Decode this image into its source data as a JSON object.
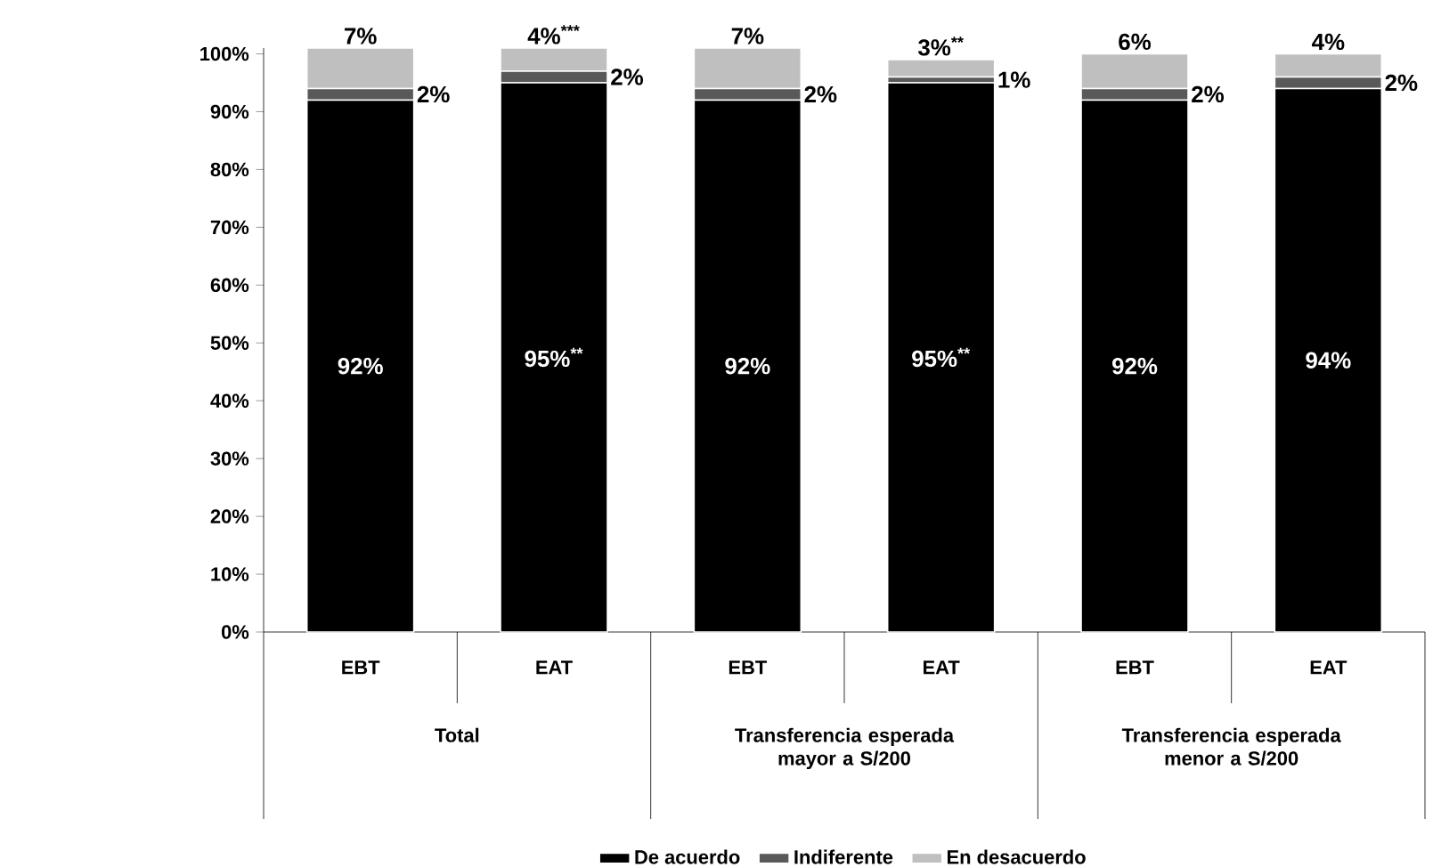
{
  "chart_data": {
    "type": "bar",
    "stacked": true,
    "categories": [
      "EBT",
      "EAT",
      "EBT",
      "EAT",
      "EBT",
      "EAT"
    ],
    "series": [
      {
        "name": "De acuerdo",
        "color": "#000000",
        "values": [
          92,
          95,
          92,
          95,
          92,
          94
        ],
        "value_labels": [
          "92%",
          "95%$^{**}$",
          "92%",
          "95%$^{**}$",
          "92%",
          "94%"
        ]
      },
      {
        "name": "Indiferente",
        "color": "#595959",
        "values": [
          2,
          2,
          2,
          1,
          2,
          2
        ],
        "value_labels": [
          "2%",
          "2%",
          "2%",
          "1%",
          "2%",
          "2%"
        ]
      },
      {
        "name": "En desacuerdo",
        "color": "#bfbfbf",
        "values": [
          7,
          4,
          7,
          3,
          6,
          4
        ],
        "value_labels": [
          "7%",
          "4%$^{***}$",
          "7%",
          "3%$^{**}$",
          "6%",
          "4%"
        ]
      }
    ],
    "annotations": [
      "Total",
      "Transferencia esperada mayor a S/200",
      "Transferencia esperada menor a S/200"
    ],
    "ylim": [
      0,
      101
    ],
    "yticks": [
      {
        "value": 0,
        "label": "0%"
      },
      {
        "value": 10,
        "label": "10%"
      },
      {
        "value": 20,
        "label": "20%"
      },
      {
        "value": 30,
        "label": "30%"
      },
      {
        "value": 40,
        "label": "40%"
      },
      {
        "value": 50,
        "label": "50%"
      },
      {
        "value": 60,
        "label": "60%"
      },
      {
        "value": 70,
        "label": "70%"
      },
      {
        "value": 80,
        "label": "80%"
      },
      {
        "value": 90,
        "label": "90%"
      },
      {
        "value": 100,
        "label": "100%"
      }
    ],
    "legend": "bottom"
  }
}
